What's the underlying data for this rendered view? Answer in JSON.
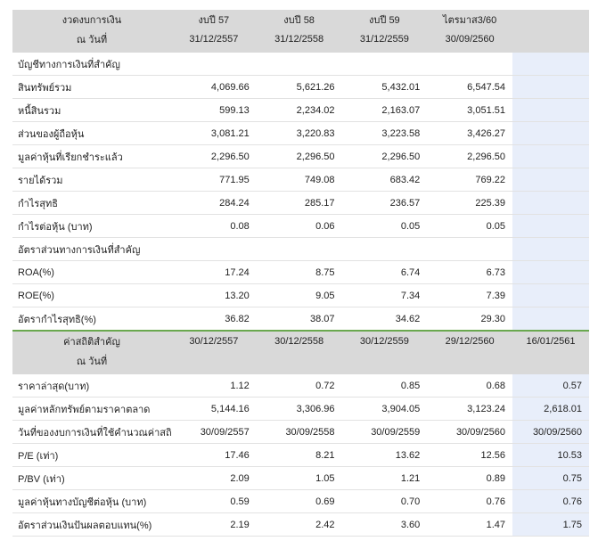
{
  "header1": {
    "label1": "งวดงบการเงิน",
    "label2": "ณ วันที่",
    "cols": [
      {
        "t": "งบปี 57",
        "d": "31/12/2557"
      },
      {
        "t": "งบปี 58",
        "d": "31/12/2558"
      },
      {
        "t": "งบปี 59",
        "d": "31/12/2559"
      },
      {
        "t": "ไตรมาส3/60",
        "d": "30/09/2560"
      }
    ]
  },
  "sections": [
    {
      "title": "บัญชีทางการเงินที่สำคัญ",
      "rows": [
        {
          "label": "สินทรัพย์รวม",
          "v": [
            "4,069.66",
            "5,621.26",
            "5,432.01",
            "6,547.54"
          ]
        },
        {
          "label": "หนี้สินรวม",
          "v": [
            "599.13",
            "2,234.02",
            "2,163.07",
            "3,051.51"
          ]
        },
        {
          "label": "ส่วนของผู้ถือหุ้น",
          "v": [
            "3,081.21",
            "3,220.83",
            "3,223.58",
            "3,426.27"
          ]
        },
        {
          "label": "มูลค่าหุ้นที่เรียกชำระแล้ว",
          "v": [
            "2,296.50",
            "2,296.50",
            "2,296.50",
            "2,296.50"
          ]
        },
        {
          "label": "รายได้รวม",
          "v": [
            "771.95",
            "749.08",
            "683.42",
            "769.22"
          ]
        },
        {
          "label": "กำไรสุทธิ",
          "v": [
            "284.24",
            "285.17",
            "236.57",
            "225.39"
          ]
        },
        {
          "label": "กำไรต่อหุ้น (บาท)",
          "v": [
            "0.08",
            "0.06",
            "0.05",
            "0.05"
          ]
        }
      ]
    },
    {
      "title": "อัตราส่วนทางการเงินที่สำคัญ",
      "rows": [
        {
          "label": "ROA(%)",
          "v": [
            "17.24",
            "8.75",
            "6.74",
            "6.73"
          ]
        },
        {
          "label": "ROE(%)",
          "v": [
            "13.20",
            "9.05",
            "7.34",
            "7.39"
          ]
        },
        {
          "label": "อัตรากำไรสุทธิ(%)",
          "v": [
            "36.82",
            "38.07",
            "34.62",
            "29.30"
          ]
        }
      ]
    }
  ],
  "header2": {
    "label1": "ค่าสถิติสำคัญ",
    "label2": "ณ วันที่",
    "dates": [
      "30/12/2557",
      "30/12/2558",
      "30/12/2559",
      "29/12/2560",
      "16/01/2561"
    ]
  },
  "stats": [
    {
      "label": "ราคาล่าสุด(บาท)",
      "v": [
        "1.12",
        "0.72",
        "0.85",
        "0.68",
        "0.57"
      ]
    },
    {
      "label": "มูลค่าหลักทรัพย์ตามราคาตลาด",
      "v": [
        "5,144.16",
        "3,306.96",
        "3,904.05",
        "3,123.24",
        "2,618.01"
      ]
    },
    {
      "label": "วันที่ของงบการเงินที่ใช้คำนวณค่าสถิติ",
      "v": [
        "30/09/2557",
        "30/09/2558",
        "30/09/2559",
        "30/09/2560",
        "30/09/2560"
      ]
    },
    {
      "label": "P/E (เท่า)",
      "v": [
        "17.46",
        "8.21",
        "13.62",
        "12.56",
        "10.53"
      ]
    },
    {
      "label": "P/BV (เท่า)",
      "v": [
        "2.09",
        "1.05",
        "1.21",
        "0.89",
        "0.75"
      ]
    },
    {
      "label": "มูลค่าหุ้นทางบัญชีต่อหุ้น (บาท)",
      "v": [
        "0.59",
        "0.69",
        "0.70",
        "0.76",
        "0.76"
      ]
    },
    {
      "label": "อัตราส่วนเงินปันผลตอบแทน(%)",
      "v": [
        "2.19",
        "2.42",
        "3.60",
        "1.47",
        "1.75"
      ]
    }
  ]
}
